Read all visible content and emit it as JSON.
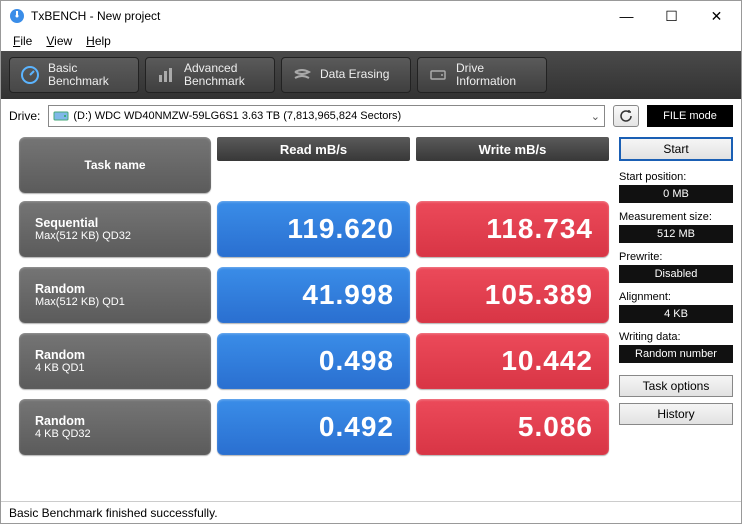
{
  "window": {
    "title": "TxBENCH - New project"
  },
  "menu": {
    "file": "File",
    "view": "View",
    "help": "Help"
  },
  "tabs": [
    {
      "label": "Basic\nBenchmark",
      "active": true
    },
    {
      "label": "Advanced\nBenchmark",
      "active": false
    },
    {
      "label": "Data Erasing",
      "active": false
    },
    {
      "label": "Drive\nInformation",
      "active": false
    }
  ],
  "drive": {
    "label": "Drive:",
    "value": "(D:) WDC WD40NMZW-59LG6S1  3.63 TB (7,813,965,824 Sectors)"
  },
  "filemode": "FILE mode",
  "headers": {
    "task": "Task name",
    "read": "Read mB/s",
    "write": "Write mB/s"
  },
  "rows": [
    {
      "name1": "Sequential",
      "name2": "Max(512 KB) QD32",
      "read": "119.620",
      "write": "118.734"
    },
    {
      "name1": "Random",
      "name2": "Max(512 KB) QD1",
      "read": "41.998",
      "write": "105.389"
    },
    {
      "name1": "Random",
      "name2": "4 KB QD1",
      "read": "0.498",
      "write": "10.442"
    },
    {
      "name1": "Random",
      "name2": "4 KB QD32",
      "read": "0.492",
      "write": "5.086"
    }
  ],
  "side": {
    "start": "Start",
    "startpos_lbl": "Start position:",
    "startpos_val": "0 MB",
    "meassz_lbl": "Measurement size:",
    "meassz_val": "512 MB",
    "prewrite_lbl": "Prewrite:",
    "prewrite_val": "Disabled",
    "align_lbl": "Alignment:",
    "align_val": "4 KB",
    "wdata_lbl": "Writing data:",
    "wdata_val": "Random number",
    "taskopt": "Task options",
    "history": "History"
  },
  "status": "Basic Benchmark finished successfully.",
  "colors": {
    "read": "#2f78db",
    "write": "#e2404f",
    "task": "#666666"
  }
}
